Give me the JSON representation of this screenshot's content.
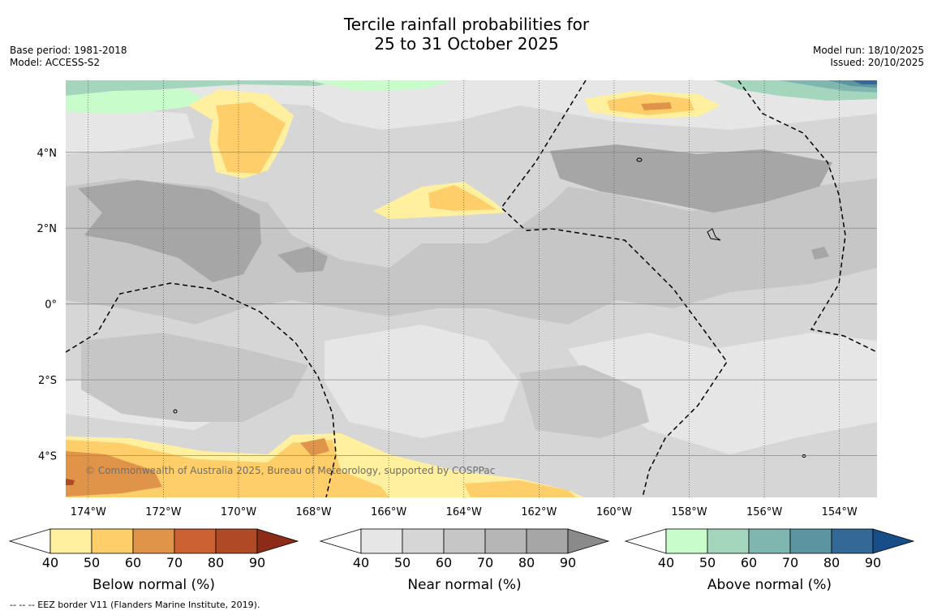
{
  "title_line1": "Tercile rainfall probabilities for",
  "title_line2": "25 to 31 October 2025",
  "base_period": "Base period: 1981-2018",
  "model": "Model: ACCESS-S2",
  "model_run": "Model run: 18/10/2025",
  "issued": "Issued: 20/10/2025",
  "copyright": "© Commonwealth of Australia 2025, Bureau of Meteorology, supported by COSPPac",
  "footnote": "--  --  -- EEZ border V11 (Flanders Marine Institute, 2019).",
  "map": {
    "lon_labels": [
      "174°W",
      "172°W",
      "170°W",
      "168°W",
      "166°W",
      "164°W",
      "162°W",
      "160°W",
      "158°W",
      "156°W",
      "154°W"
    ],
    "lat_labels": [
      "4°N",
      "2°N",
      "0°",
      "2°S",
      "4°S"
    ],
    "lon_range": [
      -174.6,
      -153.0
    ],
    "lat_range": [
      -5.1,
      5.9
    ]
  },
  "colorbars": [
    {
      "title": "Below normal (%)",
      "ticks": [
        "40",
        "50",
        "60",
        "70",
        "80",
        "90"
      ],
      "colors": [
        "#fff0a0",
        "#fece6a",
        "#e0944a",
        "#cc6234",
        "#b04a26",
        "#8c2c18"
      ]
    },
    {
      "title": "Near normal (%)",
      "ticks": [
        "40",
        "50",
        "60",
        "70",
        "80",
        "90"
      ],
      "colors": [
        "#e6e6e6",
        "#d6d6d6",
        "#c6c6c6",
        "#b6b6b6",
        "#a6a6a6",
        "#8a8a8a"
      ]
    },
    {
      "title": "Above normal (%)",
      "ticks": [
        "40",
        "50",
        "60",
        "70",
        "80",
        "90"
      ],
      "colors": [
        "#c8fcca",
        "#a4d6be",
        "#80b6b0",
        "#5c94a2",
        "#346896",
        "#184e88"
      ]
    }
  ]
}
